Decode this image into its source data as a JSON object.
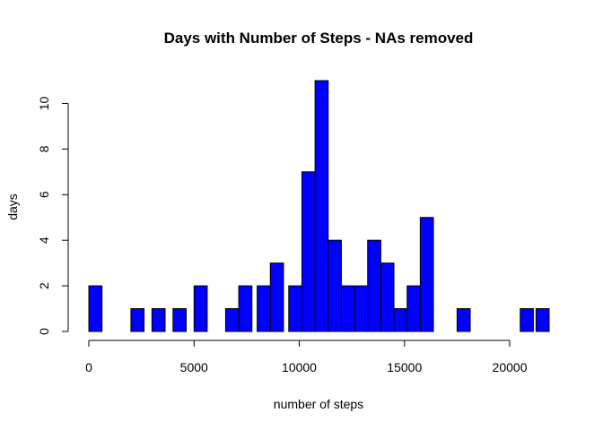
{
  "chart_data": {
    "type": "bar",
    "title": "Days with Number of Steps - NAs removed",
    "xlabel": "number of steps",
    "ylabel": "days",
    "bin_width": 625,
    "xlim": [
      0,
      21875
    ],
    "ylim": [
      0,
      11
    ],
    "x_ticks": [
      0,
      5000,
      10000,
      15000,
      20000
    ],
    "x_tick_labels": [
      "0",
      "5000",
      "10000",
      "15000",
      "20000"
    ],
    "y_ticks": [
      0,
      2,
      4,
      6,
      8,
      10
    ],
    "y_tick_labels": [
      "0",
      "2",
      "4",
      "6",
      "8",
      "10"
    ],
    "bins": [
      {
        "start": 0,
        "end": 625,
        "count": 2
      },
      {
        "start": 2000,
        "end": 2625,
        "count": 1
      },
      {
        "start": 3000,
        "end": 3625,
        "count": 1
      },
      {
        "start": 4000,
        "end": 4625,
        "count": 1
      },
      {
        "start": 5000,
        "end": 5625,
        "count": 2
      },
      {
        "start": 6500,
        "end": 7125,
        "count": 1
      },
      {
        "start": 7125,
        "end": 7750,
        "count": 2
      },
      {
        "start": 8000,
        "end": 8625,
        "count": 2
      },
      {
        "start": 8625,
        "end": 9250,
        "count": 3
      },
      {
        "start": 9500,
        "end": 10125,
        "count": 2
      },
      {
        "start": 10125,
        "end": 10750,
        "count": 7
      },
      {
        "start": 10750,
        "end": 11375,
        "count": 11
      },
      {
        "start": 11375,
        "end": 12000,
        "count": 4
      },
      {
        "start": 12000,
        "end": 12625,
        "count": 2
      },
      {
        "start": 12625,
        "end": 13250,
        "count": 2
      },
      {
        "start": 13250,
        "end": 13875,
        "count": 4
      },
      {
        "start": 13875,
        "end": 14500,
        "count": 3
      },
      {
        "start": 14500,
        "end": 15125,
        "count": 1
      },
      {
        "start": 15125,
        "end": 15750,
        "count": 2
      },
      {
        "start": 15750,
        "end": 16375,
        "count": 5
      },
      {
        "start": 17500,
        "end": 18125,
        "count": 1
      },
      {
        "start": 20500,
        "end": 21125,
        "count": 1
      },
      {
        "start": 21250,
        "end": 21875,
        "count": 1
      }
    ],
    "bar_color": "#0000ff",
    "bar_border": "#000000",
    "grid": false,
    "legend": "none"
  }
}
